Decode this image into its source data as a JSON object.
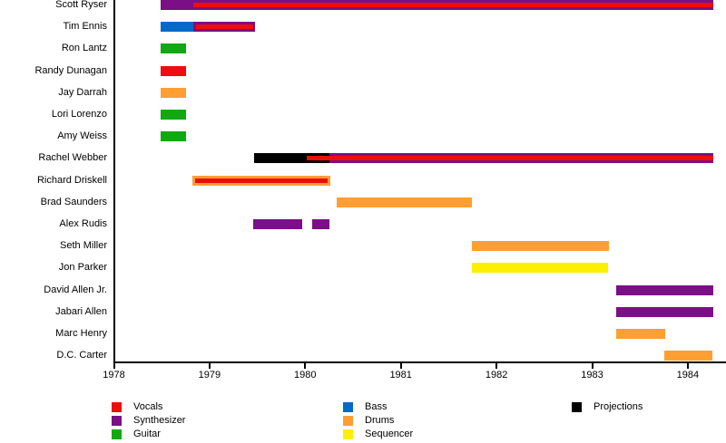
{
  "chart_data": {
    "type": "bar",
    "subtype": "band-membership-timeline",
    "title": "",
    "grid": false,
    "legend_position": "bottom",
    "x_axis": {
      "range": [
        1978,
        1984.4
      ],
      "ticks": [
        1978,
        1979,
        1980,
        1981,
        1982,
        1983,
        1984
      ],
      "labels": [
        "1978",
        "1979",
        "1980",
        "1981",
        "1982",
        "1983",
        "1984"
      ]
    },
    "instruments": {
      "vocals": {
        "label": "Vocals",
        "color": "#EC0D0D"
      },
      "synthesizer": {
        "label": "Synthesizer",
        "color": "#7B0F85"
      },
      "guitar": {
        "label": "Guitar",
        "color": "#12A812"
      },
      "bass": {
        "label": "Bass",
        "color": "#0569C8"
      },
      "drums": {
        "label": "Drums",
        "color": "#FF9E33"
      },
      "sequencer": {
        "label": "Sequencer",
        "color": "#FCF000"
      },
      "projections": {
        "label": "Projections",
        "color": "#000000"
      }
    },
    "members": [
      {
        "name": "Scott Ryser",
        "bars": [
          {
            "instrument": "synthesizer",
            "start": 1978.49,
            "end": 1984.27
          }
        ],
        "lines": [
          {
            "instrument": "vocals",
            "start": 1978.83,
            "end": 1984.27
          }
        ]
      },
      {
        "name": "Tim Ennis",
        "bars": [
          {
            "instrument": "bass",
            "start": 1978.49,
            "end": 1978.83
          },
          {
            "instrument": "synthesizer",
            "start": 1978.83,
            "end": 1979.48
          }
        ],
        "lines": [
          {
            "instrument": "vocals",
            "start": 1978.86,
            "end": 1979.46
          }
        ]
      },
      {
        "name": "Ron Lantz",
        "bars": [
          {
            "instrument": "guitar",
            "start": 1978.49,
            "end": 1978.75
          }
        ],
        "lines": []
      },
      {
        "name": "Randy Dunagan",
        "bars": [
          {
            "instrument": "vocals",
            "start": 1978.49,
            "end": 1978.75
          }
        ],
        "lines": []
      },
      {
        "name": "Jay Darrah",
        "bars": [
          {
            "instrument": "drums",
            "start": 1978.49,
            "end": 1978.75
          }
        ],
        "lines": []
      },
      {
        "name": "Lori Lorenzo",
        "bars": [
          {
            "instrument": "guitar",
            "start": 1978.49,
            "end": 1978.75
          }
        ],
        "lines": []
      },
      {
        "name": "Amy Weiss",
        "bars": [
          {
            "instrument": "guitar",
            "start": 1978.49,
            "end": 1978.75
          }
        ],
        "lines": []
      },
      {
        "name": "Rachel Webber",
        "bars": [
          {
            "instrument": "projections",
            "start": 1979.47,
            "end": 1980.25
          },
          {
            "instrument": "synthesizer",
            "start": 1980.25,
            "end": 1984.27
          }
        ],
        "lines": [
          {
            "instrument": "vocals",
            "start": 1980.02,
            "end": 1984.27
          }
        ]
      },
      {
        "name": "Richard Driskell",
        "bars": [
          {
            "instrument": "drums",
            "start": 1978.82,
            "end": 1980.26
          }
        ],
        "lines": [
          {
            "instrument": "vocals",
            "start": 1978.85,
            "end": 1980.23
          }
        ]
      },
      {
        "name": "Brad Saunders",
        "bars": [
          {
            "instrument": "drums",
            "start": 1980.33,
            "end": 1981.74
          }
        ],
        "lines": []
      },
      {
        "name": "Alex Rudis",
        "bars": [
          {
            "instrument": "synthesizer",
            "start": 1979.46,
            "end": 1979.97
          },
          {
            "instrument": "synthesizer",
            "start": 1980.07,
            "end": 1980.25
          }
        ],
        "lines": []
      },
      {
        "name": "Seth Miller",
        "bars": [
          {
            "instrument": "drums",
            "start": 1981.74,
            "end": 1983.18
          }
        ],
        "lines": []
      },
      {
        "name": "Jon Parker",
        "bars": [
          {
            "instrument": "sequencer",
            "start": 1981.74,
            "end": 1983.17
          }
        ],
        "lines": []
      },
      {
        "name": "David Allen Jr.",
        "bars": [
          {
            "instrument": "synthesizer",
            "start": 1983.25,
            "end": 1984.27
          }
        ],
        "lines": []
      },
      {
        "name": "Jabari Allen",
        "bars": [
          {
            "instrument": "synthesizer",
            "start": 1983.25,
            "end": 1984.27
          }
        ],
        "lines": []
      },
      {
        "name": "Marc Henry",
        "bars": [
          {
            "instrument": "drums",
            "start": 1983.25,
            "end": 1983.76
          }
        ],
        "lines": []
      },
      {
        "name": "D.C. Carter",
        "bars": [
          {
            "instrument": "drums",
            "start": 1983.75,
            "end": 1984.26
          }
        ],
        "lines": []
      }
    ],
    "legend": {
      "columns": [
        [
          "vocals",
          "synthesizer",
          "guitar"
        ],
        [
          "bass",
          "drums",
          "sequencer"
        ],
        [
          "projections"
        ]
      ]
    }
  }
}
